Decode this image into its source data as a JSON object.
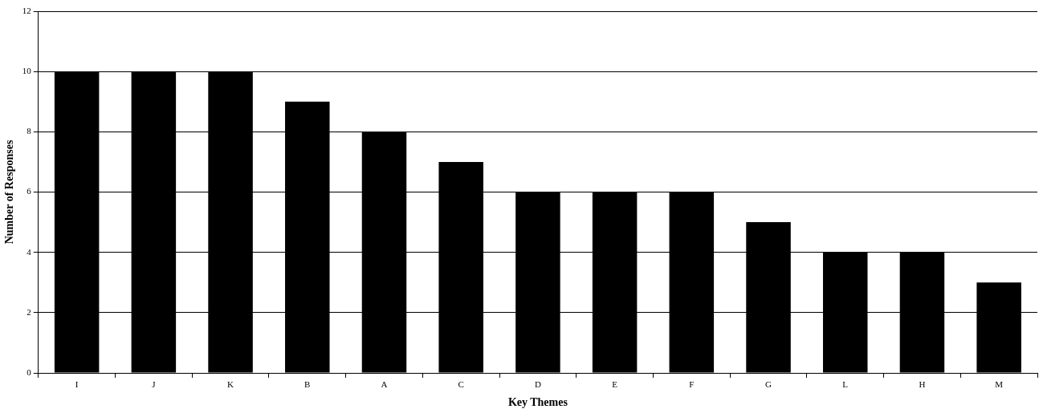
{
  "chart_data": {
    "type": "bar",
    "xlabel": "Key Themes",
    "ylabel": "Number of Responses",
    "categories": [
      "I",
      "J",
      "K",
      "B",
      "A",
      "C",
      "D",
      "E",
      "F",
      "G",
      "L",
      "H",
      "M"
    ],
    "values": [
      10,
      10,
      10,
      9,
      8,
      7,
      6,
      6,
      6,
      5,
      4,
      4,
      3
    ],
    "color": "#000000",
    "ylim": [
      0,
      12
    ],
    "yticks": [
      0,
      2,
      4,
      6,
      8,
      10,
      12
    ],
    "grid": "y",
    "legend": false
  }
}
